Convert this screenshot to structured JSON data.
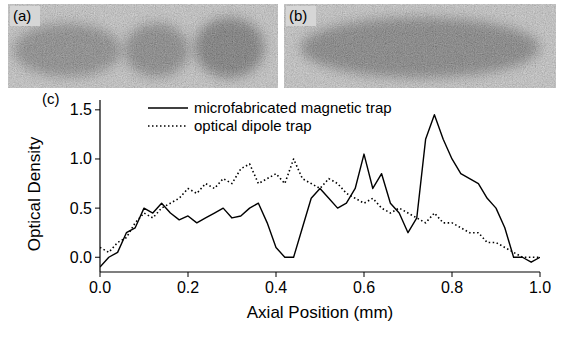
{
  "panels": {
    "a": "(a)",
    "b": "(b)"
  },
  "chart_data": {
    "type": "line",
    "panel_label": "(c)",
    "x_label": "Axial Position (mm)",
    "y_label": "Optical Density",
    "x": [
      0.0,
      0.02,
      0.04,
      0.06,
      0.08,
      0.1,
      0.12,
      0.14,
      0.16,
      0.18,
      0.2,
      0.22,
      0.24,
      0.26,
      0.28,
      0.3,
      0.32,
      0.34,
      0.36,
      0.38,
      0.4,
      0.42,
      0.44,
      0.46,
      0.48,
      0.5,
      0.52,
      0.54,
      0.56,
      0.58,
      0.6,
      0.62,
      0.64,
      0.66,
      0.68,
      0.7,
      0.72,
      0.74,
      0.76,
      0.78,
      0.8,
      0.82,
      0.84,
      0.86,
      0.88,
      0.9,
      0.92,
      0.94,
      0.96,
      0.98,
      1.0
    ],
    "series": [
      {
        "name": "microfabricated magnetic trap",
        "color": "#000000",
        "line_style": "solid",
        "values": [
          -0.1,
          0.0,
          0.05,
          0.25,
          0.3,
          0.5,
          0.45,
          0.55,
          0.45,
          0.38,
          0.42,
          0.35,
          0.4,
          0.45,
          0.5,
          0.4,
          0.42,
          0.5,
          0.55,
          0.35,
          0.1,
          0.0,
          0.0,
          0.3,
          0.6,
          0.7,
          0.6,
          0.5,
          0.55,
          0.7,
          1.05,
          0.7,
          0.85,
          0.55,
          0.45,
          0.25,
          0.4,
          1.2,
          1.45,
          1.2,
          1.0,
          0.85,
          0.8,
          0.75,
          0.6,
          0.5,
          0.3,
          0.0,
          0.0,
          -0.05,
          0.0
        ]
      },
      {
        "name": "optical dipole trap",
        "color": "#000000",
        "line_style": "dotted",
        "values": [
          0.1,
          0.05,
          0.15,
          0.2,
          0.35,
          0.45,
          0.4,
          0.5,
          0.55,
          0.6,
          0.7,
          0.65,
          0.75,
          0.7,
          0.8,
          0.75,
          0.9,
          0.95,
          0.75,
          0.8,
          0.85,
          0.75,
          1.0,
          0.8,
          0.75,
          0.7,
          0.8,
          0.75,
          0.65,
          0.6,
          0.55,
          0.6,
          0.5,
          0.45,
          0.5,
          0.45,
          0.4,
          0.35,
          0.45,
          0.35,
          0.35,
          0.3,
          0.25,
          0.25,
          0.15,
          0.15,
          0.1,
          0.05,
          0.0,
          0.0,
          0.0
        ]
      }
    ],
    "xlim": [
      0,
      1
    ],
    "xticks": [
      {
        "value": 0,
        "label": "0.0"
      },
      0.2,
      0.4,
      0.6,
      0.8,
      {
        "value": 1,
        "label": "1.0"
      }
    ],
    "ylim": [
      -0.15,
      1.6
    ],
    "yticks": [
      {
        "value": 0,
        "label": "0.0"
      },
      0.5,
      {
        "value": 1,
        "label": "1.0"
      },
      1.5
    ],
    "grid": false,
    "legend": "upper left"
  }
}
